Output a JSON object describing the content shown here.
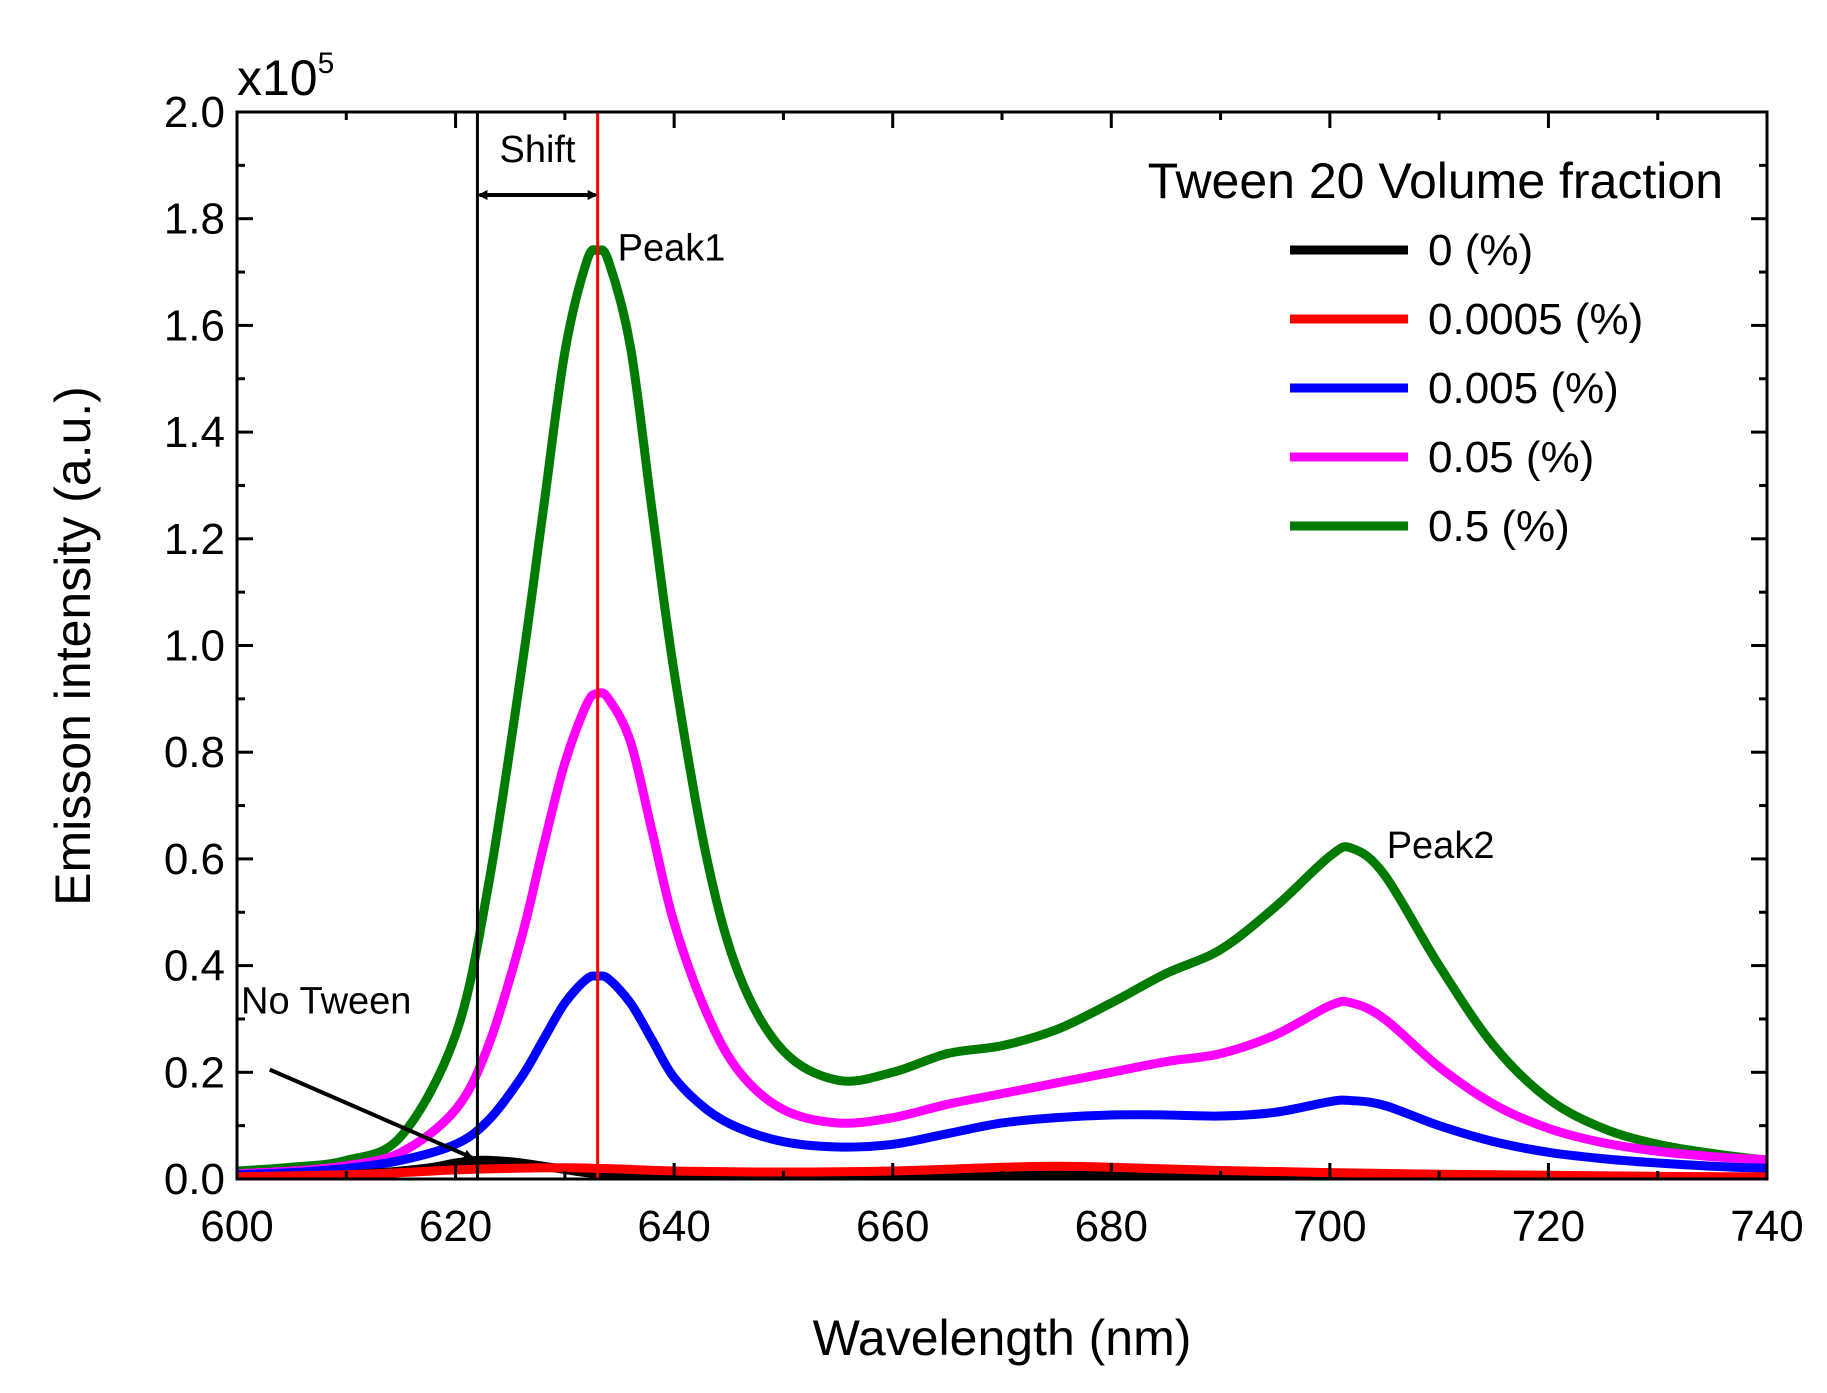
{
  "chart_data": {
    "type": "line",
    "xlabel": "Wavelength (nm)",
    "ylabel": "Emisson intensity (a.u.)",
    "y_multiplier": {
      "base": "x10",
      "exponent": "5"
    },
    "xlim": [
      600,
      740
    ],
    "ylim": [
      0,
      2.0
    ],
    "x_ticks": [
      {
        "value": 600,
        "label": "600"
      },
      {
        "value": 620,
        "label": "620"
      },
      {
        "value": 640,
        "label": "640"
      },
      {
        "value": 660,
        "label": "660"
      },
      {
        "value": 680,
        "label": "680"
      },
      {
        "value": 700,
        "label": "700"
      },
      {
        "value": 720,
        "label": "720"
      },
      {
        "value": 740,
        "label": "740"
      }
    ],
    "y_ticks": [
      {
        "value": 0.0,
        "label": "0.0"
      },
      {
        "value": 0.2,
        "label": "0.2"
      },
      {
        "value": 0.4,
        "label": "0.4"
      },
      {
        "value": 0.6,
        "label": "0.6"
      },
      {
        "value": 0.8,
        "label": "0.8"
      },
      {
        "value": 1.0,
        "label": "1.0"
      },
      {
        "value": 1.2,
        "label": "1.2"
      },
      {
        "value": 1.4,
        "label": "1.4"
      },
      {
        "value": 1.6,
        "label": "1.6"
      },
      {
        "value": 1.8,
        "label": "1.8"
      },
      {
        "value": 2.0,
        "label": "2.0"
      }
    ],
    "grid": false,
    "legend": {
      "title": "Tween 20 Volume fraction",
      "position": "top-right"
    },
    "series": [
      {
        "name": "0 (%)",
        "color": "#000000",
        "points": [
          [
            600,
            0.003
          ],
          [
            605,
            0.005
          ],
          [
            610,
            0.008
          ],
          [
            615,
            0.015
          ],
          [
            618,
            0.022
          ],
          [
            620,
            0.03
          ],
          [
            622,
            0.035
          ],
          [
            624,
            0.034
          ],
          [
            626,
            0.03
          ],
          [
            628,
            0.024
          ],
          [
            630,
            0.018
          ],
          [
            632,
            0.012
          ],
          [
            635,
            0.008
          ],
          [
            640,
            0.005
          ],
          [
            650,
            0.004
          ],
          [
            660,
            0.005
          ],
          [
            670,
            0.009
          ],
          [
            675,
            0.011
          ],
          [
            680,
            0.009
          ],
          [
            690,
            0.005
          ],
          [
            700,
            0.004
          ],
          [
            710,
            0.003
          ],
          [
            720,
            0.002
          ],
          [
            730,
            0.001
          ],
          [
            740,
            0.001
          ]
        ]
      },
      {
        "name": "0.0005 (%)",
        "color": "#ff0000",
        "points": [
          [
            600,
            0.004
          ],
          [
            610,
            0.008
          ],
          [
            615,
            0.012
          ],
          [
            620,
            0.017
          ],
          [
            625,
            0.02
          ],
          [
            630,
            0.021
          ],
          [
            633,
            0.02
          ],
          [
            636,
            0.018
          ],
          [
            640,
            0.015
          ],
          [
            650,
            0.013
          ],
          [
            660,
            0.015
          ],
          [
            670,
            0.022
          ],
          [
            675,
            0.024
          ],
          [
            680,
            0.022
          ],
          [
            690,
            0.016
          ],
          [
            700,
            0.012
          ],
          [
            710,
            0.009
          ],
          [
            720,
            0.007
          ],
          [
            730,
            0.005
          ],
          [
            740,
            0.004
          ]
        ]
      },
      {
        "name": "0.005 (%)",
        "color": "#0000ff",
        "points": [
          [
            600,
            0.008
          ],
          [
            605,
            0.012
          ],
          [
            610,
            0.02
          ],
          [
            615,
            0.035
          ],
          [
            620,
            0.065
          ],
          [
            623,
            0.11
          ],
          [
            626,
            0.19
          ],
          [
            628,
            0.26
          ],
          [
            630,
            0.33
          ],
          [
            632,
            0.375
          ],
          [
            633,
            0.38
          ],
          [
            634,
            0.375
          ],
          [
            636,
            0.33
          ],
          [
            638,
            0.26
          ],
          [
            640,
            0.19
          ],
          [
            643,
            0.13
          ],
          [
            646,
            0.095
          ],
          [
            650,
            0.07
          ],
          [
            655,
            0.06
          ],
          [
            660,
            0.065
          ],
          [
            665,
            0.085
          ],
          [
            670,
            0.105
          ],
          [
            675,
            0.115
          ],
          [
            680,
            0.12
          ],
          [
            685,
            0.12
          ],
          [
            690,
            0.118
          ],
          [
            695,
            0.125
          ],
          [
            700,
            0.145
          ],
          [
            702,
            0.147
          ],
          [
            705,
            0.138
          ],
          [
            710,
            0.1
          ],
          [
            715,
            0.07
          ],
          [
            720,
            0.05
          ],
          [
            725,
            0.038
          ],
          [
            730,
            0.03
          ],
          [
            735,
            0.024
          ],
          [
            740,
            0.02
          ]
        ]
      },
      {
        "name": "0.05 (%)",
        "color": "#ff00ff",
        "points": [
          [
            600,
            0.01
          ],
          [
            605,
            0.015
          ],
          [
            610,
            0.025
          ],
          [
            615,
            0.05
          ],
          [
            620,
            0.13
          ],
          [
            623,
            0.25
          ],
          [
            626,
            0.45
          ],
          [
            628,
            0.62
          ],
          [
            630,
            0.78
          ],
          [
            632,
            0.89
          ],
          [
            633,
            0.91
          ],
          [
            634,
            0.9
          ],
          [
            636,
            0.82
          ],
          [
            638,
            0.65
          ],
          [
            640,
            0.48
          ],
          [
            643,
            0.31
          ],
          [
            646,
            0.2
          ],
          [
            650,
            0.13
          ],
          [
            655,
            0.105
          ],
          [
            660,
            0.115
          ],
          [
            665,
            0.14
          ],
          [
            670,
            0.16
          ],
          [
            675,
            0.18
          ],
          [
            680,
            0.2
          ],
          [
            685,
            0.22
          ],
          [
            690,
            0.235
          ],
          [
            695,
            0.27
          ],
          [
            700,
            0.325
          ],
          [
            702,
            0.33
          ],
          [
            705,
            0.3
          ],
          [
            710,
            0.21
          ],
          [
            715,
            0.14
          ],
          [
            720,
            0.095
          ],
          [
            725,
            0.068
          ],
          [
            730,
            0.052
          ],
          [
            735,
            0.042
          ],
          [
            740,
            0.036
          ]
        ]
      },
      {
        "name": "0.5 (%)",
        "color": "#007a00",
        "points": [
          [
            600,
            0.015
          ],
          [
            605,
            0.022
          ],
          [
            610,
            0.035
          ],
          [
            615,
            0.08
          ],
          [
            620,
            0.27
          ],
          [
            623,
            0.55
          ],
          [
            626,
            0.95
          ],
          [
            628,
            1.25
          ],
          [
            630,
            1.55
          ],
          [
            632,
            1.72
          ],
          [
            633,
            1.74
          ],
          [
            634,
            1.72
          ],
          [
            636,
            1.56
          ],
          [
            638,
            1.25
          ],
          [
            640,
            0.95
          ],
          [
            643,
            0.6
          ],
          [
            646,
            0.38
          ],
          [
            650,
            0.24
          ],
          [
            655,
            0.185
          ],
          [
            660,
            0.2
          ],
          [
            665,
            0.235
          ],
          [
            670,
            0.25
          ],
          [
            675,
            0.28
          ],
          [
            680,
            0.33
          ],
          [
            685,
            0.385
          ],
          [
            690,
            0.43
          ],
          [
            695,
            0.51
          ],
          [
            700,
            0.605
          ],
          [
            702,
            0.62
          ],
          [
            705,
            0.57
          ],
          [
            710,
            0.4
          ],
          [
            715,
            0.25
          ],
          [
            720,
            0.15
          ],
          [
            725,
            0.095
          ],
          [
            730,
            0.065
          ],
          [
            735,
            0.048
          ],
          [
            740,
            0.035
          ]
        ]
      }
    ],
    "annotations": {
      "peak1": "Peak1",
      "peak2": "Peak2",
      "shift": "Shift",
      "no_tween": "No Tween",
      "black_line_x": 622,
      "red_line_x": 633,
      "peak1_x": 633,
      "peak1_y": 1.74,
      "peak2_x": 702,
      "peak2_y": 0.62
    }
  }
}
